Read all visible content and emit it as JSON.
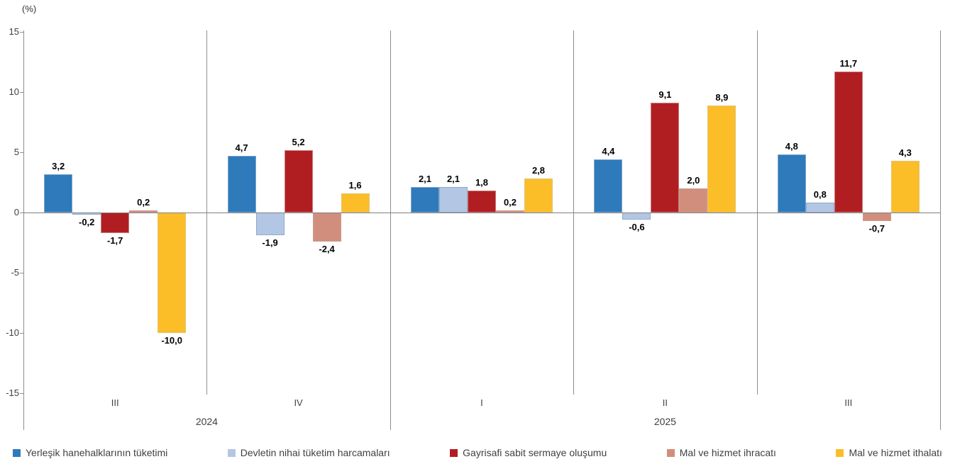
{
  "chart_data": {
    "type": "bar",
    "title": "",
    "ylabel": "(%)",
    "ylim": [
      -15,
      15
    ],
    "yticks": [
      15,
      10,
      5,
      0,
      -5,
      -10,
      -15
    ],
    "grid": false,
    "legend_position": "bottom",
    "groups": [
      {
        "quarter": "III",
        "year": "2024"
      },
      {
        "quarter": "IV",
        "year": "2024"
      },
      {
        "quarter": "I",
        "year": "2025"
      },
      {
        "quarter": "II",
        "year": "2025"
      },
      {
        "quarter": "III",
        "year": "2025"
      }
    ],
    "series": [
      {
        "name": "Yerleşik hanehalklarının tüketimi",
        "color": "#2E7ABA",
        "border": "#7FA6CC",
        "values": [
          3.2,
          4.7,
          2.1,
          4.4,
          4.8
        ],
        "labels": [
          "3,2",
          "4,7",
          "2,1",
          "4,4",
          "4,8"
        ]
      },
      {
        "name": "Devletin nihai tüketim harcamaları",
        "color": "#B3C7E4",
        "border": "#8FA9CC",
        "values": [
          -0.2,
          -1.9,
          2.1,
          -0.6,
          0.8
        ],
        "labels": [
          "-0,2",
          "-1,9",
          "2,1",
          "-0,6",
          "0,8"
        ]
      },
      {
        "name": "Gayrisafi sabit sermaye oluşumu",
        "color": "#B11E22",
        "border": "#C97C7C",
        "values": [
          -1.7,
          5.2,
          1.8,
          9.1,
          11.7
        ],
        "labels": [
          "-1,7",
          "5,2",
          "1,8",
          "9,1",
          "11,7"
        ]
      },
      {
        "name": "Mal ve hizmet ihracatı",
        "color": "#D28E7D",
        "border": "#C99C8C",
        "values": [
          0.2,
          -2.4,
          0.2,
          2.0,
          -0.7
        ],
        "labels": [
          "0,2",
          "-2,4",
          "0,2",
          "2,0",
          "-0,7"
        ]
      },
      {
        "name": "Mal ve hizmet ithalatı",
        "color": "#FBBE29",
        "border": "#E2C171",
        "values": [
          -10.0,
          1.6,
          2.8,
          8.9,
          4.3
        ],
        "labels": [
          "-10,0",
          "1,6",
          "2,8",
          "8,9",
          "4,3"
        ]
      }
    ]
  }
}
